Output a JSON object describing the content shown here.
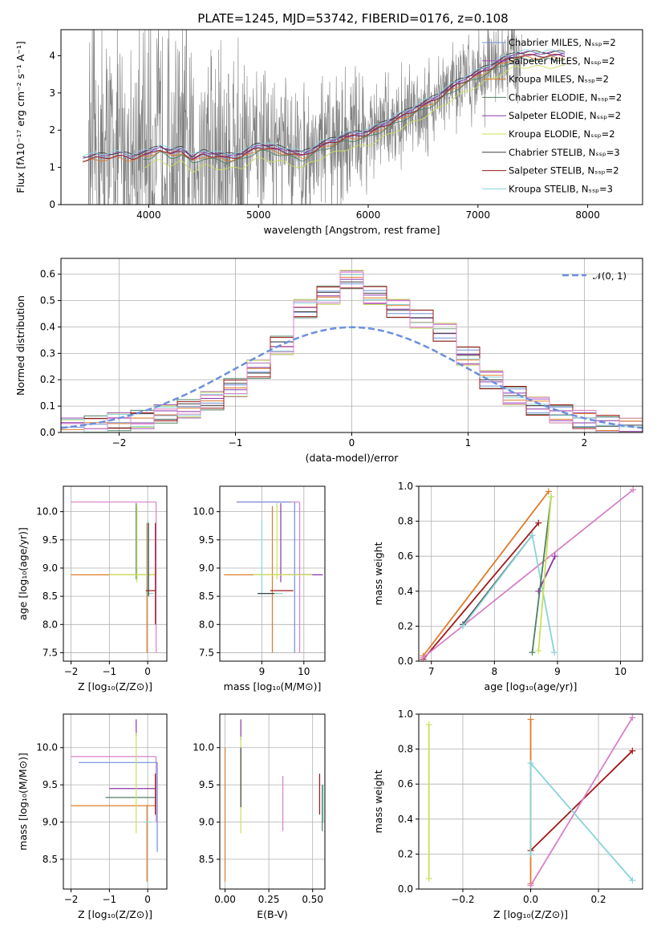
{
  "figure_title": "PLATE=1245, MJD=53742, FIBERID=0176, z=0.108",
  "colors": {
    "Chabrier MILES": "#6f8fd8",
    "Salpeter MILES": "#a04bb8",
    "Kroupa MILES": "#e07b28",
    "Chabrier ELODIE": "#4e8060",
    "Salpeter ELODIE": "#8b35a8",
    "Kroupa ELODIE": "#c8e05a",
    "Chabrier STELIB": "#404040",
    "Salpeter STELIB": "#a01818",
    "Kroupa STELIB": "#88d4d8",
    "extra": "#d880c8",
    "data": "#7f7f7f",
    "normal": "#6c8fdc"
  },
  "chart_data": [
    {
      "id": "spectrum",
      "type": "line",
      "title": "PLATE=1245, MJD=53742, FIBERID=0176, z=0.108",
      "xlabel": "wavelength [Angstrom, rest frame]",
      "ylabel": "Flux [fλ10⁻¹⁷ erg cm⁻² s⁻¹ A⁻¹]",
      "xlim": [
        3200,
        8500
      ],
      "ylim": [
        0,
        4.7
      ],
      "xticks": [
        "4000",
        "5000",
        "6000",
        "7000",
        "8000"
      ],
      "yticks": [
        "0",
        "1",
        "2",
        "3",
        "4"
      ],
      "legend_position": "top-right",
      "grid": false,
      "legend": [
        "Chabrier MILES, Nₛₛₚ=2",
        "Salpeter MILES, Nₛₛₚ=2",
        "Kroupa MILES, Nₛₛₚ=2",
        "Chabrier ELODIE, Nₛₛₚ=2",
        "Salpeter ELODIE, Nₛₛₚ=2",
        "Kroupa ELODIE, Nₛₛₚ=2",
        "Chabrier STELIB, Nₛₛₚ=3",
        "Salpeter STELIB, Nₛₛₚ=2",
        "Kroupa STELIB, Nₛₛₚ=3"
      ],
      "model_curve": {
        "x": [
          3400,
          3550,
          3700,
          3850,
          4000,
          4100,
          4200,
          4300,
          4400,
          4500,
          4700,
          4850,
          5000,
          5200,
          5400,
          5600,
          5800,
          6000,
          6200,
          6400,
          6600,
          6800,
          7000,
          7200,
          7350
        ],
        "y": [
          1.2,
          1.25,
          1.3,
          1.25,
          1.35,
          1.5,
          1.35,
          1.45,
          1.2,
          1.35,
          1.25,
          1.3,
          1.55,
          1.45,
          1.3,
          1.6,
          1.8,
          1.9,
          2.2,
          2.5,
          2.8,
          3.2,
          3.5,
          3.8,
          4.0
        ]
      },
      "data_range": [
        3450,
        7400
      ]
    },
    {
      "id": "residuals",
      "type": "line",
      "xlabel": "(data-model)/error",
      "ylabel": "Normed distribution",
      "xlim": [
        -2.5,
        2.5
      ],
      "ylim": [
        0,
        0.66
      ],
      "xticks": [
        "−2",
        "−1",
        "0",
        "1",
        "2"
      ],
      "yticks": [
        "0.0",
        "0.1",
        "0.2",
        "0.3",
        "0.4",
        "0.5",
        "0.6"
      ],
      "grid": true,
      "legend_position": "top-right",
      "legend": [
        "𝒩(0, 1)"
      ],
      "histogram": {
        "bin_edges": [
          -2.5,
          -2.3,
          -2.1,
          -1.9,
          -1.7,
          -1.5,
          -1.3,
          -1.1,
          -0.9,
          -0.7,
          -0.5,
          -0.3,
          -0.1,
          0.1,
          0.3,
          0.5,
          0.7,
          0.9,
          1.1,
          1.3,
          1.5,
          1.7,
          1.9,
          2.1,
          2.3,
          2.5
        ],
        "values": [
          0.02,
          0.03,
          0.04,
          0.05,
          0.07,
          0.09,
          0.12,
          0.17,
          0.24,
          0.33,
          0.47,
          0.52,
          0.58,
          0.52,
          0.47,
          0.43,
          0.38,
          0.29,
          0.2,
          0.14,
          0.1,
          0.07,
          0.05,
          0.03,
          0.02
        ]
      }
    },
    {
      "id": "age_vs_Z",
      "type": "scatter",
      "xlabel": "Z [log₁₀(Z/Z⊙)]",
      "ylabel": "age  [log₁₀(age/yr)]",
      "xlim": [
        -2.2,
        0.5
      ],
      "ylim": [
        7.35,
        10.45
      ],
      "xticks": [
        "−2",
        "−1",
        "0"
      ],
      "yticks": [
        "7.5",
        "8.0",
        "8.5",
        "9.0",
        "9.5",
        "10.0"
      ],
      "grid": true
    },
    {
      "id": "age_vs_mass",
      "type": "scatter",
      "xlabel": "mass [log₁₀(M/M⊙)]",
      "xlim": [
        8.0,
        10.5
      ],
      "ylim": [
        7.35,
        10.45
      ],
      "xticks": [
        "9",
        "10"
      ],
      "yticks": [
        "7.5",
        "8.0",
        "8.5",
        "9.0",
        "9.5",
        "10.0"
      ],
      "grid": true
    },
    {
      "id": "weight_vs_age",
      "type": "line",
      "xlabel": "age  [log₁₀(age/yr)]",
      "ylabel": "mass weight",
      "xlim": [
        6.8,
        10.35
      ],
      "ylim": [
        0,
        1
      ],
      "xticks": [
        "7",
        "8",
        "9",
        "10"
      ],
      "yticks": [
        "0.0",
        "0.2",
        "0.4",
        "0.6",
        "0.8",
        "1.0"
      ],
      "grid": true,
      "series": [
        {
          "key": "Kroupa MILES",
          "x": [
            6.87,
            8.86
          ],
          "y": [
            0.03,
            0.97
          ]
        },
        {
          "key": "Salpeter STELIB",
          "x": [
            6.87,
            8.7
          ],
          "y": [
            0.01,
            0.79
          ]
        },
        {
          "key": "extra",
          "x": [
            6.87,
            10.2
          ],
          "y": [
            0.02,
            0.98
          ]
        },
        {
          "key": "Chabrier STELIB",
          "x": [
            7.5,
            8.6
          ],
          "y": [
            0.21,
            0.72
          ]
        },
        {
          "key": "Kroupa STELIB",
          "x": [
            7.5,
            8.6,
            8.95
          ],
          "y": [
            0.2,
            0.72,
            0.05
          ]
        },
        {
          "key": "Salpeter ELODIE",
          "x": [
            8.7,
            8.96
          ],
          "y": [
            0.4,
            0.6
          ]
        },
        {
          "key": "Chabrier ELODIE",
          "x": [
            8.6,
            8.9
          ],
          "y": [
            0.05,
            0.94
          ]
        },
        {
          "key": "Kroupa ELODIE",
          "x": [
            8.7,
            8.9
          ],
          "y": [
            0.06,
            0.94
          ]
        }
      ]
    },
    {
      "id": "mass_vs_Z",
      "type": "scatter",
      "xlabel": "Z [log₁₀(Z/Z⊙)]",
      "ylabel": "mass [log₁₀(M/M⊙)]",
      "xlim": [
        -2.2,
        0.5
      ],
      "ylim": [
        8.1,
        10.45
      ],
      "xticks": [
        "−2",
        "−1",
        "0"
      ],
      "yticks": [
        "8.5",
        "9.0",
        "9.5",
        "10.0"
      ],
      "grid": true
    },
    {
      "id": "mass_vs_EBV",
      "type": "scatter",
      "xlabel": "E(B-V)",
      "xlim": [
        -0.03,
        0.57
      ],
      "ylim": [
        8.1,
        10.45
      ],
      "xticks": [
        "0.00",
        "0.25",
        "0.50"
      ],
      "yticks": [
        "8.5",
        "9.0",
        "9.5",
        "10.0"
      ],
      "grid": true
    },
    {
      "id": "weight_vs_Z",
      "type": "line",
      "xlabel": "Z [log₁₀(Z/Z⊙)]",
      "ylabel": "mass weight",
      "xlim": [
        -0.33,
        0.33
      ],
      "ylim": [
        0,
        1
      ],
      "xticks": [
        "−0.2",
        "0.0",
        "0.2"
      ],
      "yticks": [
        "0.0",
        "0.2",
        "0.4",
        "0.6",
        "0.8",
        "1.0"
      ],
      "grid": true,
      "series": [
        {
          "key": "Kroupa ELODIE",
          "x": [
            -0.3,
            -0.3
          ],
          "y": [
            0.06,
            0.94
          ]
        },
        {
          "key": "Kroupa MILES",
          "x": [
            0.0,
            0.0
          ],
          "y": [
            0.03,
            0.97
          ]
        },
        {
          "key": "Salpeter STELIB",
          "x": [
            0.0,
            0.3
          ],
          "y": [
            0.22,
            0.79
          ]
        },
        {
          "key": "extra",
          "x": [
            0.0,
            0.3
          ],
          "y": [
            0.02,
            0.98
          ]
        },
        {
          "key": "Kroupa STELIB",
          "x": [
            0.0,
            0.3
          ],
          "y": [
            0.72,
            0.05
          ]
        },
        {
          "key": "Kroupa STELIB",
          "x": [
            0.0,
            0.0
          ],
          "y": [
            0.2,
            0.72
          ]
        }
      ]
    }
  ]
}
